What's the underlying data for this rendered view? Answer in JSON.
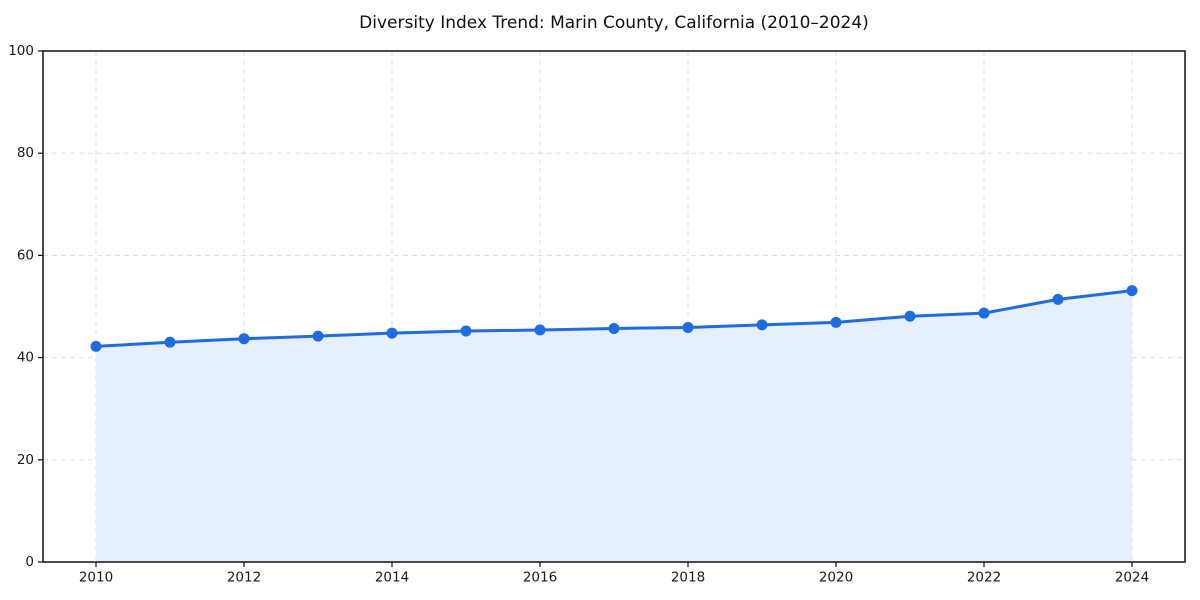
{
  "chart_data": {
    "type": "line",
    "title": "Diversity Index Trend: Marin County, California (2010–2024)",
    "x": [
      2010,
      2011,
      2012,
      2013,
      2014,
      2015,
      2016,
      2017,
      2018,
      2019,
      2020,
      2021,
      2022,
      2023,
      2024
    ],
    "series": [
      {
        "name": "Diversity Index",
        "values": [
          42.2,
          43.0,
          43.7,
          44.2,
          44.8,
          45.2,
          45.4,
          45.7,
          45.9,
          46.4,
          46.9,
          48.1,
          48.7,
          51.4,
          53.1
        ]
      }
    ],
    "xticks": [
      2010,
      2012,
      2014,
      2016,
      2018,
      2020,
      2022,
      2024
    ],
    "yticks": [
      0,
      20,
      40,
      60,
      80,
      100
    ],
    "ylim": [
      0,
      100
    ],
    "xlim": [
      2009.3,
      2024.7
    ],
    "xlabel": "",
    "ylabel": "",
    "grid": {
      "visible": true,
      "style": "dashed"
    },
    "legend": {
      "visible": false
    },
    "area_fill": true,
    "marker": "circle",
    "colors": {
      "line": "#1f6ce0",
      "marker": "#1f6ce0",
      "area_fill": "#e7effc",
      "grid": "#dedede",
      "axis": "#111111",
      "tick_label": "#1a1a1a",
      "title": "#111111",
      "background": "#ffffff"
    }
  }
}
